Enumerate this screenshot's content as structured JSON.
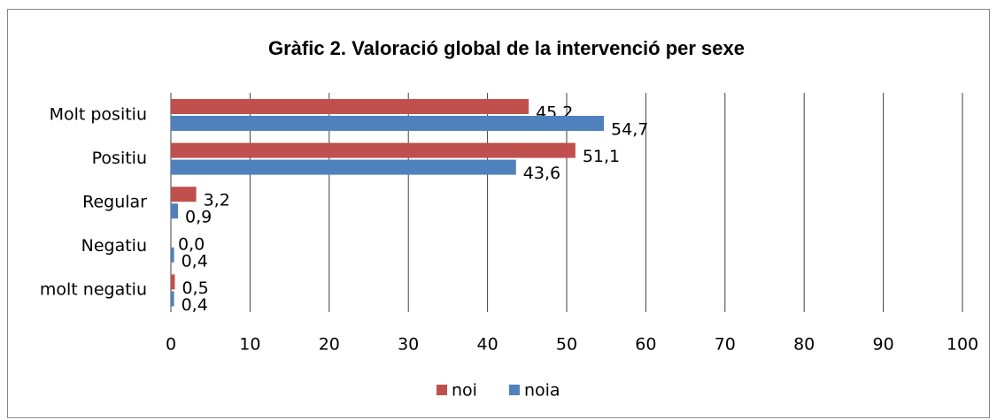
{
  "chart_data": {
    "type": "hbar",
    "title": "Gràfic 2. Valoració global de la intervenció per sexe",
    "categories": [
      "Molt positiu",
      "Positiu",
      "Regular",
      "Negatiu",
      "molt negatiu"
    ],
    "series": [
      {
        "name": "noi",
        "color": "#c0504d",
        "values": [
          45.2,
          51.1,
          3.2,
          0.0,
          0.5
        ],
        "value_labels": [
          "45,2",
          "51,1",
          "3,2",
          "0,0",
          "0,5"
        ]
      },
      {
        "name": "noia",
        "color": "#4f81bd",
        "values": [
          54.7,
          43.6,
          0.9,
          0.4,
          0.4
        ],
        "value_labels": [
          "54,7",
          "43,6",
          "0,9",
          "0,4",
          "0,4"
        ]
      }
    ],
    "xlim": [
      0,
      100
    ],
    "xticks": [
      0,
      10,
      20,
      30,
      40,
      50,
      60,
      70,
      80,
      90,
      100
    ],
    "grid": true,
    "legend": "bottom"
  }
}
